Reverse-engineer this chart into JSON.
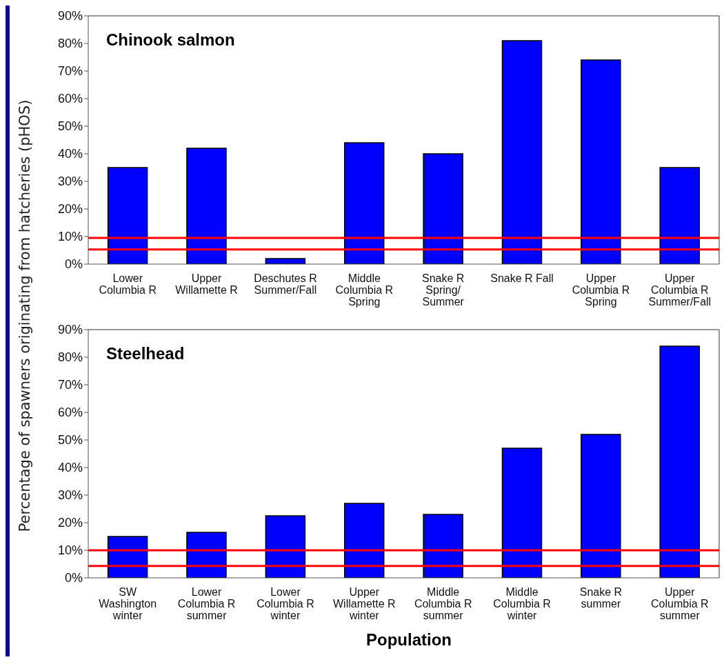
{
  "chart_data": [
    {
      "type": "bar",
      "title": "Chinook salmon",
      "ylabel": "Percentage of spawners originating from hatcheries (pHOS)",
      "categories": [
        "Lower\nColumbia R",
        "Upper\nWillamette R",
        "Deschutes R\nSummer/Fall",
        "Middle\nColumbia R\nSpring",
        "Snake R\nSpring/\nSummer",
        "Snake R Fall",
        "Upper\nColumbia R\nSpring",
        "Upper\nColumbia R\nSummer/Fall"
      ],
      "values": [
        35,
        42,
        2,
        44,
        40,
        81,
        74,
        35
      ],
      "color": "#0000ff",
      "ylim": [
        0,
        90
      ],
      "yticks": [
        {
          "value": 0,
          "label": "0%"
        },
        {
          "value": 10,
          "label": "10%"
        },
        {
          "value": 20,
          "label": "20%"
        },
        {
          "value": 30,
          "label": "30%"
        },
        {
          "value": 40,
          "label": "40%"
        },
        {
          "value": 50,
          "label": "50%"
        },
        {
          "value": 60,
          "label": "60%"
        },
        {
          "value": 70,
          "label": "70%"
        },
        {
          "value": 80,
          "label": "80%"
        },
        {
          "value": 90,
          "label": "90%"
        }
      ],
      "ref_lines": [
        {
          "axis": "y",
          "value": 9.5,
          "color": "#ff0000"
        },
        {
          "axis": "y",
          "value": 5.3,
          "color": "#ff0000"
        }
      ],
      "grid": false,
      "legend": false
    },
    {
      "type": "bar",
      "title": "Steelhead",
      "xlabel": "Population",
      "categories": [
        "SW\nWashington\nwinter",
        "Lower\nColumbia R\nsummer",
        "Lower\nColumbia R\nwinter",
        "Upper\nWillamette R\nwinter",
        "Middle\nColumbia R\nsummer",
        "Middle\nColumbia R\nwinter",
        "Snake R\nsummer",
        "Upper\nColumbia R\nsummer"
      ],
      "values": [
        15,
        16.5,
        22.5,
        27,
        23,
        47,
        52,
        84
      ],
      "color": "#0000ff",
      "ylim": [
        0,
        90
      ],
      "yticks": [
        {
          "value": 0,
          "label": "0%"
        },
        {
          "value": 10,
          "label": "10%"
        },
        {
          "value": 20,
          "label": "20%"
        },
        {
          "value": 30,
          "label": "30%"
        },
        {
          "value": 40,
          "label": "40%"
        },
        {
          "value": 50,
          "label": "50%"
        },
        {
          "value": 60,
          "label": "60%"
        },
        {
          "value": 70,
          "label": "70%"
        },
        {
          "value": 80,
          "label": "80%"
        },
        {
          "value": 90,
          "label": "90%"
        }
      ],
      "ref_lines": [
        {
          "axis": "y",
          "value": 10,
          "color": "#ff0000"
        },
        {
          "axis": "y",
          "value": 4.3,
          "color": "#ff0000"
        }
      ],
      "grid": false,
      "legend": false
    }
  ]
}
